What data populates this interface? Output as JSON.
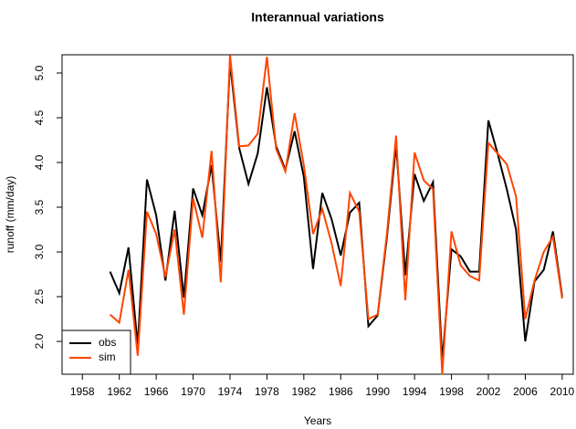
{
  "chart_data": {
    "type": "line",
    "title": "Interannual variations",
    "x_label": "Years",
    "y_label": "runoff (mm/day)",
    "x": [
      1961,
      1962,
      1963,
      1964,
      1965,
      1966,
      1967,
      1968,
      1969,
      1970,
      1971,
      1972,
      1973,
      1974,
      1975,
      1976,
      1977,
      1978,
      1979,
      1980,
      1981,
      1982,
      1983,
      1984,
      1985,
      1986,
      1987,
      1988,
      1989,
      1990,
      1991,
      1992,
      1993,
      1994,
      1995,
      1996,
      1997,
      1998,
      1999,
      2000,
      2001,
      2002,
      2003,
      2004,
      2005,
      2006,
      2007,
      2008,
      2009,
      2010
    ],
    "series": [
      {
        "name": "obs",
        "color": "#000000",
        "values": [
          2.78,
          2.54,
          3.05,
          1.95,
          3.81,
          3.41,
          2.68,
          3.46,
          2.49,
          3.71,
          3.41,
          3.97,
          2.89,
          5.12,
          4.16,
          3.76,
          4.1,
          4.84,
          4.18,
          3.92,
          4.35,
          3.84,
          2.81,
          3.66,
          3.37,
          2.96,
          3.44,
          3.55,
          2.17,
          2.29,
          3.16,
          4.2,
          2.74,
          3.87,
          3.57,
          3.78,
          1.78,
          3.03,
          2.95,
          2.78,
          2.78,
          4.47,
          4.1,
          3.7,
          3.25,
          2.0,
          2.67,
          2.8,
          3.23,
          2.5
        ]
      },
      {
        "name": "sim",
        "color": "#ff4500",
        "values": [
          2.3,
          2.21,
          2.8,
          1.84,
          3.45,
          3.2,
          2.72,
          3.25,
          2.3,
          3.6,
          3.16,
          4.13,
          2.66,
          5.2,
          4.18,
          4.19,
          4.32,
          5.18,
          4.15,
          3.9,
          4.55,
          3.97,
          3.2,
          3.48,
          3.1,
          2.62,
          3.66,
          3.45,
          2.25,
          2.3,
          3.2,
          4.3,
          2.46,
          4.11,
          3.8,
          3.7,
          1.63,
          3.23,
          2.85,
          2.73,
          2.68,
          4.22,
          4.1,
          3.98,
          3.62,
          2.25,
          2.68,
          3.0,
          3.17,
          2.48
        ]
      }
    ],
    "xlim": [
      1955.8,
      2011.2
    ],
    "xticks": [
      1958,
      1962,
      1966,
      1970,
      1974,
      1978,
      1982,
      1986,
      1990,
      1994,
      1998,
      2002,
      2006,
      2010
    ],
    "ylim": [
      1.633,
      5.204
    ],
    "yticks": [
      {
        "value": 2,
        "label": "2.0"
      },
      2.5,
      {
        "value": 3,
        "label": "3.0"
      },
      3.5,
      {
        "value": 4,
        "label": "4.0"
      },
      4.5,
      {
        "value": 5,
        "label": "5.0"
      }
    ],
    "legend": "bottomleft"
  }
}
